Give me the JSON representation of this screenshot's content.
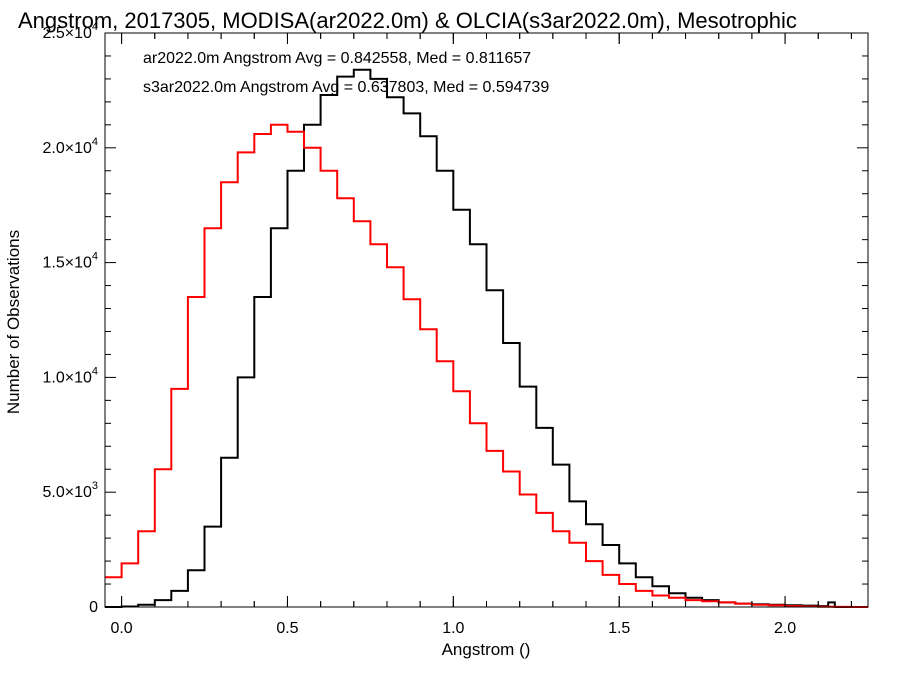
{
  "chart_data": {
    "type": "line",
    "title": "Angstrom, 2017305, MODISA(ar2022.0m) & OLCIA(s3ar2022.0m), Mesotrophic",
    "xlabel": "Angstrom ()",
    "ylabel": "Number of Observations",
    "xlim": [
      -0.05,
      2.25
    ],
    "ylim": [
      0,
      25000
    ],
    "x_ticks": [
      {
        "value": 0.0,
        "label": "0.0"
      },
      {
        "value": 0.5,
        "label": "0.5"
      },
      {
        "value": 1.0,
        "label": "1.0"
      },
      {
        "value": 1.5,
        "label": "1.5"
      },
      {
        "value": 2.0,
        "label": "2.0"
      }
    ],
    "y_ticks": [
      {
        "value": 0,
        "mant": "0",
        "exp": ""
      },
      {
        "value": 5000,
        "mant": "5.0×10",
        "exp": "3"
      },
      {
        "value": 10000,
        "mant": "1.0×10",
        "exp": "4"
      },
      {
        "value": 15000,
        "mant": "1.5×10",
        "exp": "4"
      },
      {
        "value": 20000,
        "mant": "2.0×10",
        "exp": "4"
      },
      {
        "value": 25000,
        "mant": "2.5×10",
        "exp": "4"
      }
    ],
    "grid": false,
    "legend_position": "top-left",
    "series": [
      {
        "name": "ar2022.0m",
        "color": "#000000",
        "legend_text": "ar2022.0m Angstrom Avg = 0.842558, Med = 0.811657",
        "x": [
          -0.05,
          0.0,
          0.05,
          0.1,
          0.15,
          0.2,
          0.25,
          0.3,
          0.35,
          0.4,
          0.45,
          0.5,
          0.55,
          0.6,
          0.65,
          0.7,
          0.75,
          0.8,
          0.85,
          0.9,
          0.95,
          1.0,
          1.05,
          1.1,
          1.15,
          1.2,
          1.25,
          1.3,
          1.35,
          1.4,
          1.45,
          1.5,
          1.55,
          1.6,
          1.65,
          1.7,
          1.75,
          1.8,
          1.85,
          1.9,
          1.95,
          2.0,
          2.05,
          2.1,
          2.13,
          2.15
        ],
        "y": [
          0,
          20,
          100,
          300,
          700,
          1600,
          3500,
          6500,
          10000,
          13500,
          16500,
          19000,
          21000,
          22300,
          23100,
          23400,
          23000,
          22200,
          21500,
          20500,
          19000,
          17300,
          15800,
          13800,
          11500,
          9600,
          7800,
          6200,
          4600,
          3600,
          2700,
          1900,
          1300,
          900,
          600,
          400,
          300,
          200,
          150,
          120,
          100,
          80,
          60,
          40,
          200,
          0
        ]
      },
      {
        "name": "s3ar2022.0m",
        "color": "#ff0000",
        "legend_text": "s3ar2022.0m Angstrom Avg = 0.637803, Med = 0.594739",
        "x": [
          -0.05,
          0.0,
          0.05,
          0.1,
          0.15,
          0.2,
          0.25,
          0.3,
          0.35,
          0.4,
          0.45,
          0.5,
          0.55,
          0.6,
          0.65,
          0.7,
          0.75,
          0.8,
          0.85,
          0.9,
          0.95,
          1.0,
          1.05,
          1.1,
          1.15,
          1.2,
          1.25,
          1.3,
          1.35,
          1.4,
          1.45,
          1.5,
          1.55,
          1.6,
          1.65,
          1.7,
          1.75,
          1.8,
          1.85,
          1.9,
          1.95,
          2.0,
          2.05,
          2.1,
          2.15,
          2.2
        ],
        "y": [
          1300,
          1900,
          3300,
          6000,
          9500,
          13500,
          16500,
          18500,
          19800,
          20600,
          21000,
          20700,
          20000,
          19000,
          17800,
          16800,
          15800,
          14800,
          13400,
          12100,
          10700,
          9400,
          8000,
          6800,
          5900,
          4900,
          4100,
          3300,
          2800,
          2000,
          1400,
          1000,
          700,
          500,
          400,
          300,
          250,
          200,
          150,
          100,
          80,
          40,
          20,
          10,
          5,
          0
        ]
      }
    ]
  }
}
